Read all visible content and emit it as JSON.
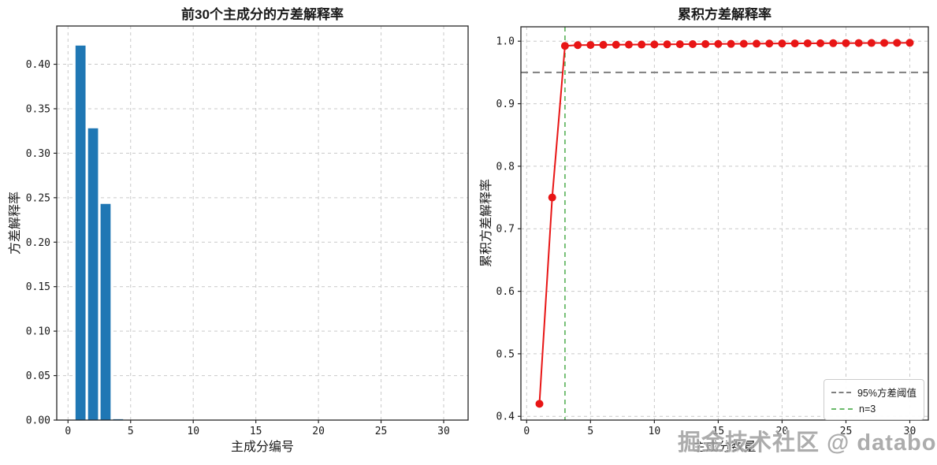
{
  "figure": {
    "background": "#ffffff",
    "watermark": "掘金技术社区 @ databook"
  },
  "colors": {
    "bar": "#1f77b4",
    "line": "#e81515",
    "threshold": "#7f7f7f",
    "component": "#6aba6a",
    "grid": "#c9c9c9",
    "spine": "#262626"
  },
  "chart_data": [
    {
      "type": "bar",
      "title": "前30个主成分的方差解释率",
      "xlabel": "主成分编号",
      "ylabel": "方差解释率",
      "x": [
        1,
        2,
        3,
        4,
        5,
        6,
        7,
        8,
        9,
        10,
        11,
        12,
        13,
        14,
        15,
        16,
        17,
        18,
        19,
        20,
        21,
        22,
        23,
        24,
        25,
        26,
        27,
        28,
        29,
        30
      ],
      "values": [
        0.421,
        0.328,
        0.243,
        0.001,
        0.0001,
        0.0001,
        0.0001,
        0.0001,
        0.0001,
        0.0001,
        0.0001,
        0.0001,
        0.0001,
        0.0001,
        0.0001,
        0.0001,
        0.0001,
        0.0001,
        0.0001,
        0.0001,
        0.0001,
        0.0001,
        0.0001,
        0.0001,
        0.0001,
        0.0001,
        0.0001,
        0.0001,
        0.0001,
        0.0001
      ],
      "bar_color": "#1f77b4",
      "bar_width": 0.8,
      "xlim": [
        -0.9,
        31.95
      ],
      "ylim": [
        0,
        0.443
      ],
      "xticks": [
        0,
        5,
        10,
        15,
        20,
        25,
        30
      ],
      "xtick_labels": [
        "0",
        "5",
        "10",
        "15",
        "20",
        "25",
        "30"
      ],
      "yticks": [
        0,
        0.05,
        0.1,
        0.15,
        0.2,
        0.25,
        0.3,
        0.35,
        0.4
      ],
      "ytick_labels": [
        "0.00",
        "0.05",
        "0.10",
        "0.15",
        "0.20",
        "0.25",
        "0.30",
        "0.35",
        "0.40"
      ],
      "grid": true,
      "grid_style": "dashed"
    },
    {
      "type": "line",
      "title": "累积方差解释率",
      "xlabel": "主成分数量",
      "ylabel": "累积方差解释率",
      "x": [
        1,
        2,
        3,
        4,
        5,
        6,
        7,
        8,
        9,
        10,
        11,
        12,
        13,
        14,
        15,
        16,
        17,
        18,
        19,
        20,
        21,
        22,
        23,
        24,
        25,
        26,
        27,
        28,
        29,
        30
      ],
      "values": [
        0.42,
        0.75,
        0.9925,
        0.9937,
        0.9939,
        0.9941,
        0.9943,
        0.9945,
        0.9946,
        0.9948,
        0.995,
        0.9951,
        0.9953,
        0.9954,
        0.9956,
        0.9957,
        0.9959,
        0.996,
        0.9962,
        0.9963,
        0.9964,
        0.9966,
        0.9967,
        0.9968,
        0.9969,
        0.997,
        0.9971,
        0.9972,
        0.9973,
        0.9974
      ],
      "line_color": "#e81515",
      "marker": "circle",
      "marker_radius": 5,
      "xlim": [
        -0.45,
        31.45
      ],
      "ylim": [
        0.394,
        1.023
      ],
      "xticks": [
        0,
        5,
        10,
        15,
        20,
        25,
        30
      ],
      "xtick_labels": [
        "0",
        "5",
        "10",
        "15",
        "20",
        "25",
        "30"
      ],
      "yticks": [
        0.4,
        0.5,
        0.6,
        0.7,
        0.8,
        0.9,
        1.0
      ],
      "ytick_labels": [
        "0.4",
        "0.5",
        "0.6",
        "0.7",
        "0.8",
        "0.9",
        "1.0"
      ],
      "grid": true,
      "grid_style": "dashed",
      "threshold_line": {
        "y": 0.95,
        "color": "#7f7f7f",
        "style": "dashed",
        "label": "95%方差阈值"
      },
      "component_line": {
        "x": 3,
        "color": "#6aba6a",
        "style": "dashed",
        "label": "n=3"
      },
      "legend": {
        "position": "lower-right",
        "entries": [
          {
            "label": "95%方差阈值",
            "color": "#7f7f7f"
          },
          {
            "label": "n=3",
            "color": "#6aba6a"
          }
        ]
      }
    }
  ]
}
